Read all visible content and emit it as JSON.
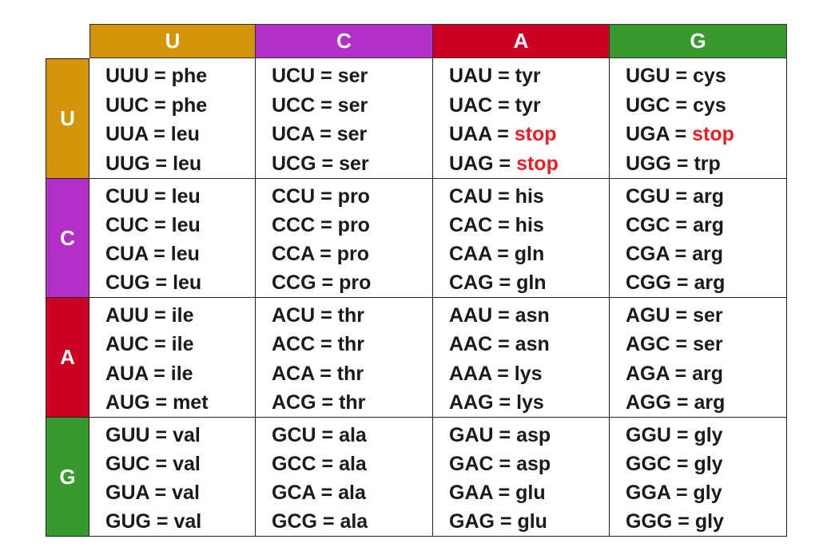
{
  "columns": [
    {
      "label": "U",
      "color": "#d4940a"
    },
    {
      "label": "C",
      "color": "#b030c8"
    },
    {
      "label": "A",
      "color": "#cc0022"
    },
    {
      "label": "G",
      "color": "#389a2e"
    }
  ],
  "rows": [
    {
      "label": "U",
      "cells": [
        [
          [
            "UUU",
            "phe"
          ],
          [
            "UUC",
            "phe"
          ],
          [
            "UUA",
            "leu"
          ],
          [
            "UUG",
            "leu"
          ]
        ],
        [
          [
            "UCU",
            "ser"
          ],
          [
            "UCC",
            "ser"
          ],
          [
            "UCA",
            "ser"
          ],
          [
            "UCG",
            "ser"
          ]
        ],
        [
          [
            "UAU",
            "tyr"
          ],
          [
            "UAC",
            "tyr"
          ],
          [
            "UAA",
            "stop"
          ],
          [
            "UAG",
            "stop"
          ]
        ],
        [
          [
            "UGU",
            "cys"
          ],
          [
            "UGC",
            "cys"
          ],
          [
            "UGA",
            "stop"
          ],
          [
            "UGG",
            "trp"
          ]
        ]
      ]
    },
    {
      "label": "C",
      "cells": [
        [
          [
            "CUU",
            "leu"
          ],
          [
            "CUC",
            "leu"
          ],
          [
            "CUA",
            "leu"
          ],
          [
            "CUG",
            "leu"
          ]
        ],
        [
          [
            "CCU",
            "pro"
          ],
          [
            "CCC",
            "pro"
          ],
          [
            "CCA",
            "pro"
          ],
          [
            "CCG",
            "pro"
          ]
        ],
        [
          [
            "CAU",
            "his"
          ],
          [
            "CAC",
            "his"
          ],
          [
            "CAA",
            "gln"
          ],
          [
            "CAG",
            "gln"
          ]
        ],
        [
          [
            "CGU",
            "arg"
          ],
          [
            "CGC",
            "arg"
          ],
          [
            "CGA",
            "arg"
          ],
          [
            "CGG",
            "arg"
          ]
        ]
      ]
    },
    {
      "label": "A",
      "cells": [
        [
          [
            "AUU",
            "ile"
          ],
          [
            "AUC",
            "ile"
          ],
          [
            "AUA",
            "ile"
          ],
          [
            "AUG",
            "met"
          ]
        ],
        [
          [
            "ACU",
            "thr"
          ],
          [
            "ACC",
            "thr"
          ],
          [
            "ACA",
            "thr"
          ],
          [
            "ACG",
            "thr"
          ]
        ],
        [
          [
            "AAU",
            "asn"
          ],
          [
            "AAC",
            "asn"
          ],
          [
            "AAA",
            "lys"
          ],
          [
            "AAG",
            "lys"
          ]
        ],
        [
          [
            "AGU",
            "ser"
          ],
          [
            "AGC",
            "ser"
          ],
          [
            "AGA",
            "arg"
          ],
          [
            "AGG",
            "arg"
          ]
        ]
      ]
    },
    {
      "label": "G",
      "cells": [
        [
          [
            "GUU",
            "val"
          ],
          [
            "GUC",
            "val"
          ],
          [
            "GUA",
            "val"
          ],
          [
            "GUG",
            "val"
          ]
        ],
        [
          [
            "GCU",
            "ala"
          ],
          [
            "GCC",
            "ala"
          ],
          [
            "GCA",
            "ala"
          ],
          [
            "GCG",
            "ala"
          ]
        ],
        [
          [
            "GAU",
            "asp"
          ],
          [
            "GAC",
            "asp"
          ],
          [
            "GAA",
            "glu"
          ],
          [
            "GAG",
            "glu"
          ]
        ],
        [
          [
            "GGU",
            "gly"
          ],
          [
            "GGC",
            "gly"
          ],
          [
            "GGA",
            "gly"
          ],
          [
            "GGG",
            "gly"
          ]
        ]
      ]
    }
  ],
  "equals": " = ",
  "stop_color": "#ee1c24"
}
